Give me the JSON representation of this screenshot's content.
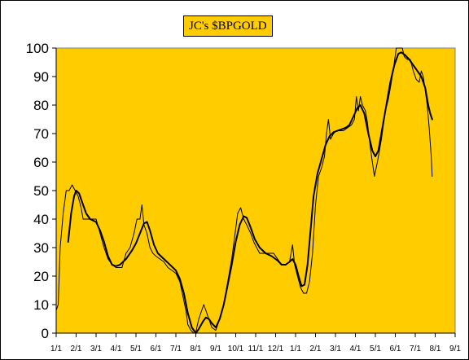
{
  "chart_data": {
    "type": "line",
    "title": "JC's $BPGOLD",
    "xlabel": "",
    "ylabel": "",
    "ylim": [
      0,
      100
    ],
    "yticks": [
      0,
      10,
      20,
      30,
      40,
      50,
      60,
      70,
      80,
      90,
      100
    ],
    "xticks": [
      "1/1",
      "2/1",
      "3/1",
      "4/1",
      "5/1",
      "6/1",
      "7/1",
      "8/1",
      "9/1",
      "10/1",
      "11/1",
      "12/1",
      "1/1",
      "2/1",
      "3/1",
      "4/1",
      "5/1",
      "6/1",
      "7/1",
      "8/1",
      "9/1"
    ],
    "grid": false,
    "legend": "none",
    "plot_background": "#FFCC00",
    "series": [
      {
        "style": "thin",
        "color": "#000000",
        "points": [
          [
            0,
            8
          ],
          [
            0.1,
            10
          ],
          [
            0.2,
            30
          ],
          [
            0.35,
            42
          ],
          [
            0.5,
            50
          ],
          [
            0.65,
            50
          ],
          [
            0.8,
            52
          ],
          [
            0.95,
            50
          ],
          [
            1.1,
            48
          ],
          [
            1.25,
            44
          ],
          [
            1.35,
            40
          ],
          [
            1.6,
            40
          ],
          [
            2.0,
            40
          ],
          [
            2.2,
            35
          ],
          [
            2.4,
            30
          ],
          [
            2.6,
            26
          ],
          [
            2.8,
            24
          ],
          [
            3.0,
            23
          ],
          [
            3.3,
            23
          ],
          [
            3.5,
            28
          ],
          [
            3.7,
            30
          ],
          [
            3.9,
            35
          ],
          [
            4.05,
            40
          ],
          [
            4.2,
            40
          ],
          [
            4.3,
            45
          ],
          [
            4.4,
            38
          ],
          [
            4.55,
            35
          ],
          [
            4.7,
            30
          ],
          [
            4.85,
            28
          ],
          [
            5.0,
            27
          ],
          [
            5.2,
            26
          ],
          [
            5.4,
            25
          ],
          [
            5.6,
            23
          ],
          [
            5.8,
            22
          ],
          [
            6.0,
            21
          ],
          [
            6.2,
            18
          ],
          [
            6.35,
            13
          ],
          [
            6.5,
            8
          ],
          [
            6.6,
            3
          ],
          [
            6.75,
            1
          ],
          [
            6.9,
            0
          ],
          [
            7.0,
            0
          ],
          [
            7.05,
            2
          ],
          [
            7.15,
            5
          ],
          [
            7.3,
            8
          ],
          [
            7.4,
            10
          ],
          [
            7.5,
            8
          ],
          [
            7.65,
            5
          ],
          [
            7.8,
            2
          ],
          [
            8.0,
            1
          ],
          [
            8.2,
            5
          ],
          [
            8.4,
            10
          ],
          [
            8.6,
            18
          ],
          [
            8.8,
            26
          ],
          [
            8.95,
            34
          ],
          [
            9.1,
            42
          ],
          [
            9.25,
            44
          ],
          [
            9.4,
            40
          ],
          [
            9.55,
            38
          ],
          [
            9.75,
            35
          ],
          [
            9.9,
            32
          ],
          [
            10.05,
            30
          ],
          [
            10.2,
            28
          ],
          [
            10.5,
            28
          ],
          [
            10.9,
            28
          ],
          [
            11.1,
            26
          ],
          [
            11.3,
            24
          ],
          [
            11.5,
            24
          ],
          [
            11.7,
            25
          ],
          [
            11.85,
            31
          ],
          [
            11.95,
            24
          ],
          [
            12.1,
            20
          ],
          [
            12.25,
            16
          ],
          [
            12.4,
            14
          ],
          [
            12.55,
            14
          ],
          [
            12.7,
            18
          ],
          [
            12.85,
            28
          ],
          [
            13.0,
            45
          ],
          [
            13.15,
            55
          ],
          [
            13.3,
            58
          ],
          [
            13.45,
            62
          ],
          [
            13.55,
            70
          ],
          [
            13.65,
            75
          ],
          [
            13.75,
            68
          ],
          [
            13.9,
            70
          ],
          [
            14.05,
            71
          ],
          [
            14.2,
            71
          ],
          [
            14.4,
            71
          ],
          [
            14.6,
            72
          ],
          [
            14.8,
            73
          ],
          [
            14.95,
            75
          ],
          [
            15.05,
            83
          ],
          [
            15.15,
            78
          ],
          [
            15.25,
            83
          ],
          [
            15.35,
            80
          ],
          [
            15.5,
            78
          ],
          [
            15.6,
            74
          ],
          [
            15.75,
            65
          ],
          [
            15.85,
            60
          ],
          [
            15.95,
            55
          ],
          [
            16.1,
            60
          ],
          [
            16.3,
            68
          ],
          [
            16.5,
            78
          ],
          [
            16.65,
            82
          ],
          [
            16.8,
            88
          ],
          [
            16.95,
            95
          ],
          [
            17.05,
            100
          ],
          [
            17.2,
            100
          ],
          [
            17.35,
            100
          ],
          [
            17.45,
            97
          ],
          [
            17.6,
            96
          ],
          [
            17.75,
            96
          ],
          [
            17.9,
            92
          ],
          [
            18.05,
            89
          ],
          [
            18.2,
            88
          ],
          [
            18.3,
            92
          ],
          [
            18.4,
            90
          ],
          [
            18.5,
            85
          ],
          [
            18.6,
            80
          ],
          [
            18.7,
            72
          ],
          [
            18.8,
            62
          ],
          [
            18.85,
            55
          ]
        ]
      },
      {
        "style": "thick",
        "color": "#000000",
        "points": [
          [
            0.6,
            32
          ],
          [
            0.75,
            42
          ],
          [
            0.9,
            48
          ],
          [
            1.0,
            50
          ],
          [
            1.15,
            49
          ],
          [
            1.3,
            46
          ],
          [
            1.5,
            42
          ],
          [
            1.7,
            40
          ],
          [
            2.0,
            39
          ],
          [
            2.2,
            36
          ],
          [
            2.4,
            32
          ],
          [
            2.6,
            27
          ],
          [
            2.8,
            24
          ],
          [
            3.0,
            23.5
          ],
          [
            3.2,
            24
          ],
          [
            3.5,
            26
          ],
          [
            3.8,
            29
          ],
          [
            4.0,
            31.5
          ],
          [
            4.2,
            35
          ],
          [
            4.4,
            38.5
          ],
          [
            4.55,
            39
          ],
          [
            4.7,
            36
          ],
          [
            4.9,
            31
          ],
          [
            5.1,
            28
          ],
          [
            5.4,
            26
          ],
          [
            5.7,
            24
          ],
          [
            6.0,
            22
          ],
          [
            6.2,
            19
          ],
          [
            6.4,
            14
          ],
          [
            6.6,
            7
          ],
          [
            6.8,
            2
          ],
          [
            7.0,
            0
          ],
          [
            7.15,
            1.5
          ],
          [
            7.35,
            4
          ],
          [
            7.5,
            5.5
          ],
          [
            7.65,
            5
          ],
          [
            7.8,
            3.5
          ],
          [
            8.0,
            2
          ],
          [
            8.2,
            5
          ],
          [
            8.4,
            10
          ],
          [
            8.6,
            17
          ],
          [
            8.8,
            24
          ],
          [
            9.0,
            32
          ],
          [
            9.2,
            38
          ],
          [
            9.4,
            41
          ],
          [
            9.55,
            40.5
          ],
          [
            9.75,
            37
          ],
          [
            9.95,
            33
          ],
          [
            10.2,
            30
          ],
          [
            10.5,
            28
          ],
          [
            10.8,
            27
          ],
          [
            11.1,
            25.5
          ],
          [
            11.3,
            24
          ],
          [
            11.5,
            24
          ],
          [
            11.7,
            25
          ],
          [
            11.85,
            26
          ],
          [
            12.0,
            24
          ],
          [
            12.15,
            20
          ],
          [
            12.3,
            16.5
          ],
          [
            12.45,
            17
          ],
          [
            12.6,
            24
          ],
          [
            12.75,
            36
          ],
          [
            12.9,
            48
          ],
          [
            13.1,
            56
          ],
          [
            13.3,
            61
          ],
          [
            13.5,
            66
          ],
          [
            13.7,
            69
          ],
          [
            13.9,
            70.5
          ],
          [
            14.1,
            71
          ],
          [
            14.3,
            71.5
          ],
          [
            14.5,
            72
          ],
          [
            14.7,
            73
          ],
          [
            14.9,
            76
          ],
          [
            15.1,
            79
          ],
          [
            15.25,
            80
          ],
          [
            15.45,
            77
          ],
          [
            15.65,
            70
          ],
          [
            15.85,
            64
          ],
          [
            16.0,
            62
          ],
          [
            16.15,
            64
          ],
          [
            16.35,
            72
          ],
          [
            16.55,
            80
          ],
          [
            16.75,
            88
          ],
          [
            16.95,
            94
          ],
          [
            17.15,
            98
          ],
          [
            17.3,
            98.5
          ],
          [
            17.5,
            97.5
          ],
          [
            17.7,
            96
          ],
          [
            17.9,
            94
          ],
          [
            18.1,
            92
          ],
          [
            18.3,
            90
          ],
          [
            18.5,
            86
          ],
          [
            18.65,
            80
          ],
          [
            18.75,
            77
          ],
          [
            18.85,
            75
          ]
        ]
      }
    ]
  }
}
